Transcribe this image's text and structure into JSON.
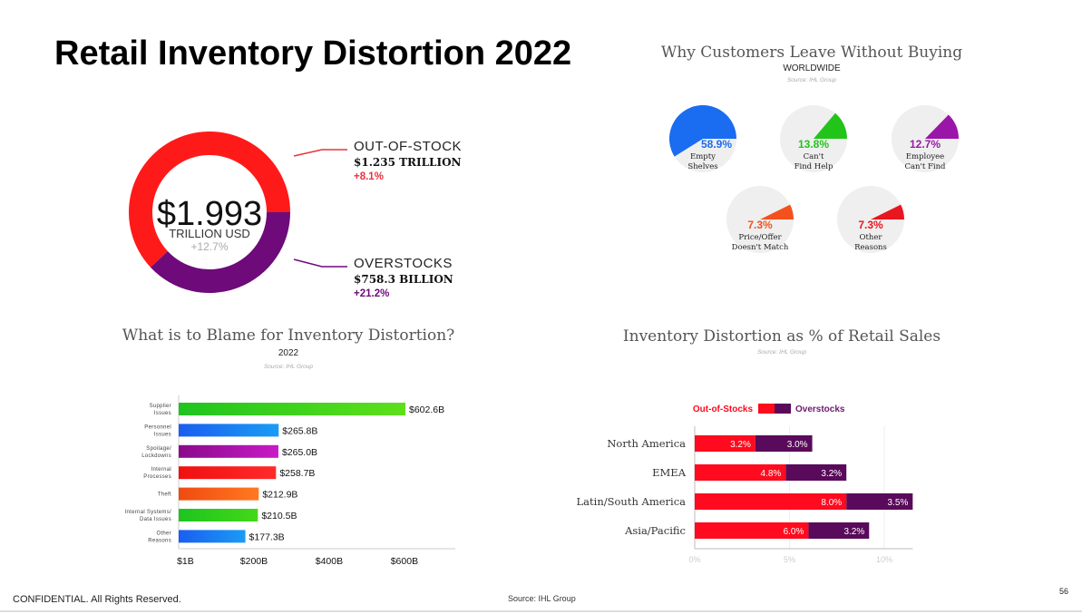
{
  "slide": {
    "title": "Retail Inventory Distortion 2022",
    "footer": "CONFIDENTIAL. All Rights Reserved.",
    "source": "Source: IHL Group",
    "page_number": "56"
  },
  "chart_data": [
    {
      "type": "pie",
      "variant": "donut",
      "center_value": "$1.993",
      "center_unit": "TRILLION USD",
      "center_change": "+12.7%",
      "slices": [
        {
          "name": "OUT-OF-STOCK",
          "value": 1235,
          "amount": "$1.235 TRILLION",
          "change": "+8.1%",
          "color": "#ff1a1a"
        },
        {
          "name": "OVERSTOCKS",
          "value": 758.3,
          "amount": "$758.3 BILLION",
          "change": "+21.2%",
          "color": "#6e0a7a"
        }
      ]
    },
    {
      "type": "pie",
      "title": "Why Customers Leave Without Buying",
      "subtitle": "WORLDWIDE",
      "source": "Source: IHL Group",
      "items": [
        {
          "label1": "Empty",
          "label2": "Shelves",
          "value": 58.9,
          "text": "58.9%",
          "color": "#1a6cf0"
        },
        {
          "label1": "Can't",
          "label2": "Find Help",
          "value": 13.8,
          "text": "13.8%",
          "color": "#22c41a"
        },
        {
          "label1": "Employee",
          "label2": "Can't Find",
          "value": 12.7,
          "text": "12.7%",
          "color": "#9a16a8"
        },
        {
          "label1": "Price/Offer",
          "label2": "Doesn't Match",
          "value": 7.3,
          "text": "7.3%",
          "color": "#f4511e"
        },
        {
          "label1": "Other",
          "label2": "Reasons",
          "value": 7.3,
          "text": "7.3%",
          "color": "#e8161e"
        }
      ]
    },
    {
      "type": "bar",
      "title": "What is to Blame for Inventory Distortion?",
      "subtitle": "2022",
      "source": "Source: IHL Group",
      "categories": [
        [
          "Supplier",
          "Issues"
        ],
        [
          "Personnel",
          "Issues"
        ],
        [
          "Spoilage/",
          "Lockdowns"
        ],
        [
          "Internal",
          "Processes"
        ],
        [
          "Theft"
        ],
        [
          "Internal Systems/",
          "Data Issues"
        ],
        [
          "Other",
          "Reasons"
        ]
      ],
      "values": [
        602.6,
        265.8,
        265.0,
        258.7,
        212.9,
        210.5,
        177.3
      ],
      "labels": [
        "$602.6B",
        "$265.8B",
        "$265.0B",
        "$258.7B",
        "$212.9B",
        "$210.5B",
        "$177.3B"
      ],
      "colors": [
        [
          "#1ec41e",
          "#5ee01a"
        ],
        [
          "#1a5ef0",
          "#1a9cf5"
        ],
        [
          "#8a0a8a",
          "#c81ac8"
        ],
        [
          "#f01010",
          "#ff2a2a"
        ],
        [
          "#f04a10",
          "#ff7a20"
        ],
        [
          "#1ec41e",
          "#44d81a"
        ],
        [
          "#1a5ef0",
          "#1a9cf5"
        ]
      ],
      "xticks": [
        {
          "v": 1,
          "label": "$1B"
        },
        {
          "v": 200,
          "label": "$200B"
        },
        {
          "v": 400,
          "label": "$400B"
        },
        {
          "v": 600,
          "label": "$600B"
        }
      ],
      "xlim": [
        0,
        680
      ]
    },
    {
      "type": "bar",
      "stacked": true,
      "title": "Inventory Distortion as % of Retail Sales",
      "source": "Source: IHL Group",
      "categories": [
        "North America",
        "EMEA",
        "Latin/South America",
        "Asia/Pacific"
      ],
      "series": [
        {
          "name": "Out-of-Stocks",
          "values": [
            3.2,
            4.8,
            8.0,
            6.0
          ],
          "labels": [
            "3.2%",
            "4.8%",
            "8.0%",
            "6.0%"
          ],
          "color": "#ff0a1e"
        },
        {
          "name": "Overstocks",
          "values": [
            3.0,
            3.2,
            3.5,
            3.2
          ],
          "labels": [
            "3.0%",
            "3.2%",
            "3.5%",
            "3.2%"
          ],
          "color": "#5a0a5a"
        }
      ],
      "xticks": [
        {
          "v": 0,
          "label": "0%"
        },
        {
          "v": 5,
          "label": "5%"
        },
        {
          "v": 10,
          "label": "10%"
        }
      ],
      "xlim": [
        0,
        11.5
      ]
    }
  ]
}
